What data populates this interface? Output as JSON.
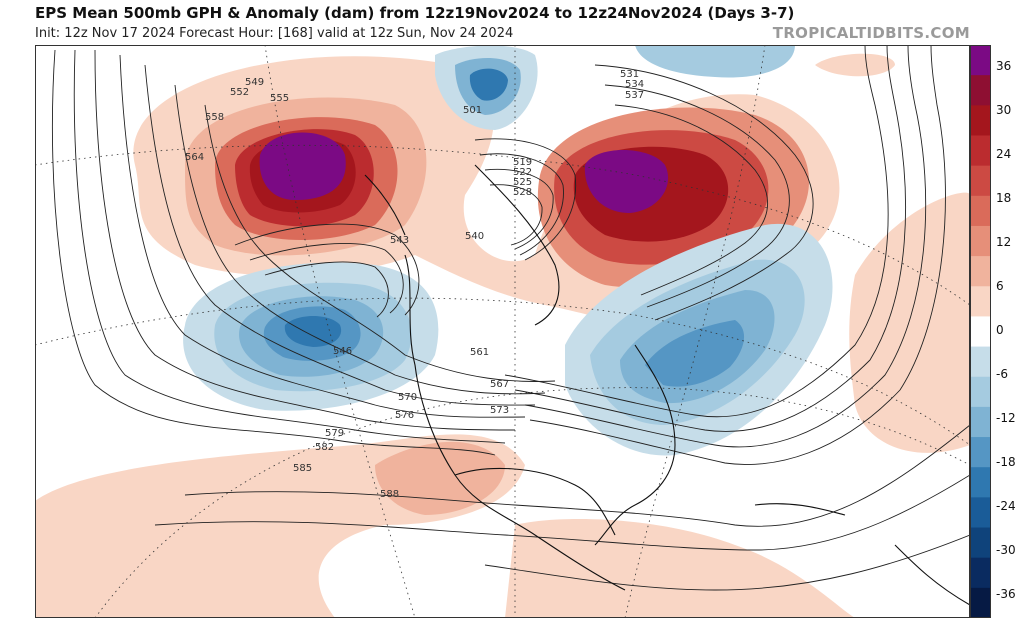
{
  "header": {
    "title": "EPS Mean 500mb GPH & Anomaly (dam) from 12z19Nov2024 to 12z24Nov2024 (Days 3-7)",
    "subtitle": "Init: 12z Nov 17 2024   Forecast Hour: [168]   valid at 12z Sun, Nov 24 2024",
    "brand": "TROPICALTIDBITS.COM"
  },
  "colorbar": {
    "ticks": [
      "36",
      "30",
      "24",
      "18",
      "12",
      "6",
      "0",
      "-6",
      "-12",
      "-18",
      "-24",
      "-30",
      "-36"
    ],
    "colors": [
      "#7b0a84",
      "#8e0f32",
      "#a4161d",
      "#bb2c2f",
      "#cc4a43",
      "#da6b5a",
      "#e68f79",
      "#f0b39d",
      "#f9d6c5",
      "#ffffff",
      "#c6dde9",
      "#a5cbe0",
      "#7fb3d3",
      "#5596c4",
      "#2f78b0",
      "#1a5c98",
      "#0f437b",
      "#0a2b60",
      "#061a44"
    ]
  },
  "contour_labels": [
    "501",
    "519",
    "522",
    "525",
    "528",
    "531",
    "534",
    "537",
    "540",
    "543",
    "546",
    "549",
    "552",
    "555",
    "558",
    "561",
    "564",
    "567",
    "570",
    "573",
    "576",
    "579",
    "582",
    "585",
    "588"
  ]
}
